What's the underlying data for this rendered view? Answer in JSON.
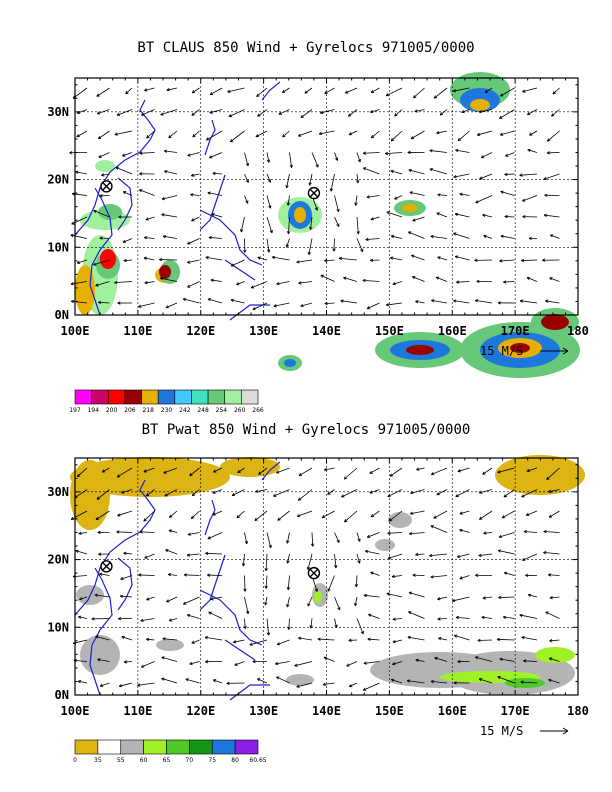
{
  "chart_data": [
    {
      "type": "heatmap",
      "title": "BT CLAUS 850 Wind + Gyrelocs 971005/0000",
      "x_ticks": [
        "100E",
        "110E",
        "120E",
        "130E",
        "140E",
        "150E",
        "160E",
        "170E",
        "180"
      ],
      "y_ticks": [
        "0N",
        "10N",
        "20N",
        "30N"
      ],
      "xlim": [
        100,
        180
      ],
      "ylim": [
        0,
        35
      ],
      "reference_vector": "15 M/S",
      "colorbar_labels": [
        "197",
        "194",
        "200",
        "206",
        "218",
        "230",
        "242",
        "248",
        "254",
        "260",
        "266"
      ],
      "colorbar_colors": [
        "#ff00ff",
        "#cc0066",
        "#ff0000",
        "#990000",
        "#e6b000",
        "#1e78dc",
        "#40c8ff",
        "#40e0c0",
        "#66c878",
        "#a0f0a0",
        "#dcdcdc"
      ],
      "gyre_locations": [
        {
          "lon": 105,
          "lat": 19
        },
        {
          "lon": 138,
          "lat": 18
        }
      ]
    },
    {
      "type": "heatmap",
      "title": "BT Pwat 850 Wind + Gyrelocs 971005/0000",
      "x_ticks": [
        "100E",
        "110E",
        "120E",
        "130E",
        "140E",
        "150E",
        "160E",
        "170E",
        "180"
      ],
      "y_ticks": [
        "0N",
        "10N",
        "20N",
        "30N"
      ],
      "xlim": [
        100,
        180
      ],
      "ylim": [
        0,
        35
      ],
      "reference_vector": "15 M/S",
      "colorbar_labels": [
        "0",
        "35",
        "55",
        "60",
        "65",
        "70",
        "75",
        "80",
        "60.65"
      ],
      "colorbar_colors": [
        "#dcb414",
        "#ffffff",
        "#b4b4b4",
        "#a0f028",
        "#50c828",
        "#149614",
        "#1e78dc",
        "#8c1ee6"
      ],
      "gyre_locations": [
        {
          "lon": 105,
          "lat": 19
        },
        {
          "lon": 138,
          "lat": 18
        }
      ]
    }
  ]
}
